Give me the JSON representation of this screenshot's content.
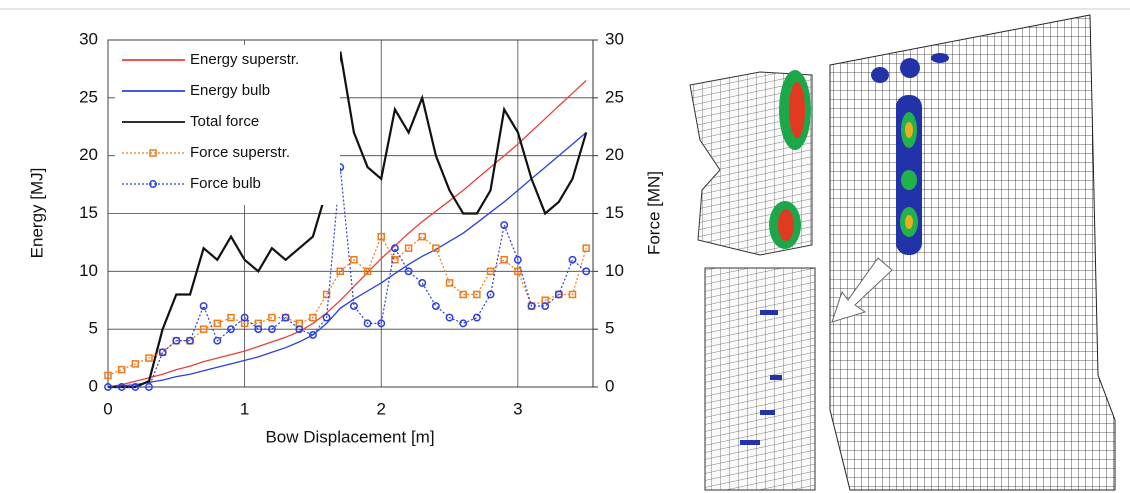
{
  "chart_data": {
    "type": "line",
    "xlabel": "Bow Displacement [m]",
    "ylabel": "Energy [MJ]",
    "y2label": "Force [MN]",
    "x": [
      0,
      0.1,
      0.2,
      0.3,
      0.4,
      0.5,
      0.6,
      0.7,
      0.8,
      0.9,
      1.0,
      1.1,
      1.2,
      1.3,
      1.4,
      1.5,
      1.6,
      1.7,
      1.8,
      1.9,
      2.0,
      2.1,
      2.2,
      2.3,
      2.4,
      2.5,
      2.6,
      2.7,
      2.8,
      2.9,
      3.0,
      3.1,
      3.2,
      3.3,
      3.4,
      3.5
    ],
    "xlim": [
      0,
      3.55
    ],
    "xticks": [
      0,
      1,
      2,
      3
    ],
    "ylim": [
      0,
      30
    ],
    "yticks": [
      0,
      5,
      10,
      15,
      20,
      25,
      30
    ],
    "y2lim": [
      0,
      30
    ],
    "y2ticks": [
      0,
      5,
      10,
      15,
      20,
      25,
      30
    ],
    "grid": true,
    "series": [
      {
        "name": "Energy superstr.",
        "color": "#e8413c",
        "style": "line",
        "values": [
          0,
          0.2,
          0.5,
          0.8,
          1.1,
          1.5,
          1.8,
          2.2,
          2.5,
          2.8,
          3.1,
          3.5,
          3.9,
          4.3,
          4.8,
          5.5,
          6.4,
          7.5,
          8.7,
          9.9,
          11.1,
          12.2,
          13.3,
          14.3,
          15.2,
          16.1,
          17.0,
          18.0,
          19.0,
          20.0,
          21.0,
          22.1,
          23.2,
          24.3,
          25.4,
          26.5
        ]
      },
      {
        "name": "Energy bulb",
        "color": "#2b3fe0",
        "style": "line",
        "values": [
          0,
          0.1,
          0.2,
          0.4,
          0.6,
          0.9,
          1.1,
          1.4,
          1.7,
          2.0,
          2.3,
          2.6,
          3.0,
          3.4,
          3.9,
          4.5,
          5.5,
          6.8,
          7.6,
          8.3,
          9.0,
          9.8,
          10.6,
          11.3,
          11.9,
          12.6,
          13.3,
          14.2,
          15.1,
          16.0,
          17.0,
          18.0,
          19.0,
          20.0,
          21.0,
          22.0
        ]
      },
      {
        "name": "Total force",
        "color": "#111111",
        "style": "line",
        "axis": "y2",
        "values": [
          0,
          0,
          0,
          0.5,
          5,
          8,
          8,
          12,
          11,
          13,
          11,
          10,
          12,
          11,
          12,
          13,
          17,
          29,
          22,
          19,
          18,
          24,
          22,
          25,
          20,
          17,
          15,
          15,
          17,
          24,
          22,
          18,
          15,
          16,
          18,
          22
        ]
      },
      {
        "name": "Force superstr.",
        "color": "#f07a1a",
        "style": "square",
        "axis": "y2",
        "values": [
          1,
          1.5,
          2,
          2.5,
          3,
          4,
          4,
          5,
          5.5,
          6,
          5.5,
          5.5,
          6,
          6,
          5.5,
          6,
          8,
          10,
          11,
          10,
          13,
          11,
          12,
          13,
          12,
          9,
          8,
          8,
          10,
          11,
          10,
          7,
          7.5,
          8,
          8,
          12
        ]
      },
      {
        "name": "Force bulb",
        "color": "#2b3fe0",
        "style": "circle",
        "axis": "y2",
        "values": [
          0,
          0,
          0,
          0,
          3,
          4,
          4,
          7,
          4,
          5,
          6,
          5,
          5,
          6,
          5,
          4.5,
          6,
          19,
          7,
          5.5,
          5.5,
          12,
          10,
          9,
          7,
          6,
          5.5,
          6,
          8,
          14,
          11,
          7,
          7,
          8,
          11,
          10
        ]
      }
    ]
  }
}
